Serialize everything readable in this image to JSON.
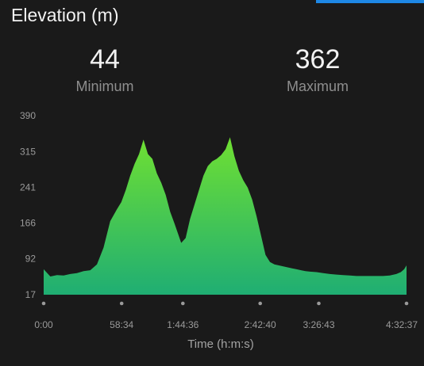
{
  "header": {
    "title": "Elevation (m)"
  },
  "stats": {
    "minimum": {
      "value": "44",
      "label": "Minimum"
    },
    "maximum": {
      "value": "362",
      "label": "Maximum"
    }
  },
  "colors": {
    "background": "#1a1a1a",
    "area_top": "#6fe032",
    "area_bottom": "#1fae73",
    "accent": "#1e88e5"
  },
  "chart_data": {
    "type": "area",
    "xlabel": "Time (h:m:s)",
    "ylabel": "",
    "x_tick_labels": [
      "0:00",
      "58:34",
      "1:44:36",
      "2:42:40",
      "3:26:43",
      "4:32:37"
    ],
    "x_tick_seconds": [
      0,
      3514,
      6276,
      9760,
      12403,
      16357
    ],
    "y_ticks": [
      17,
      92,
      166,
      241,
      315,
      390
    ],
    "ylim": [
      17,
      390
    ],
    "xlim_seconds": [
      0,
      16357
    ],
    "x_seconds": [
      0,
      300,
      600,
      900,
      1200,
      1500,
      1800,
      2100,
      2400,
      2700,
      3000,
      3300,
      3500,
      3700,
      3900,
      4100,
      4300,
      4500,
      4700,
      4900,
      5100,
      5300,
      5500,
      5700,
      5900,
      6050,
      6200,
      6400,
      6600,
      6800,
      7000,
      7200,
      7400,
      7600,
      7800,
      8000,
      8200,
      8400,
      8600,
      8800,
      9000,
      9200,
      9400,
      9600,
      9800,
      10000,
      10200,
      10400,
      10600,
      10800,
      11000,
      11200,
      11400,
      11600,
      11800,
      12000,
      12300,
      12600,
      12900,
      13200,
      13500,
      13800,
      14100,
      14400,
      14700,
      15000,
      15300,
      15600,
      15900,
      16100,
      16250,
      16357
    ],
    "y": [
      70,
      55,
      58,
      57,
      60,
      62,
      66,
      68,
      80,
      115,
      170,
      195,
      210,
      235,
      265,
      290,
      310,
      340,
      310,
      300,
      270,
      250,
      225,
      190,
      165,
      145,
      125,
      135,
      175,
      205,
      235,
      265,
      285,
      295,
      300,
      308,
      320,
      345,
      305,
      275,
      255,
      240,
      215,
      180,
      140,
      100,
      85,
      80,
      78,
      76,
      74,
      72,
      70,
      68,
      66,
      65,
      64,
      62,
      60,
      59,
      58,
      57,
      56,
      56,
      56,
      56,
      56,
      57,
      60,
      64,
      70,
      78
    ]
  }
}
